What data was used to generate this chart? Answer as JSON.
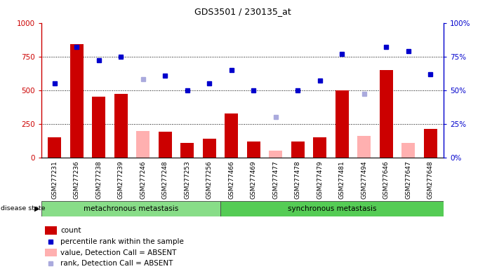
{
  "title": "GDS3501 / 230135_at",
  "samples": [
    "GSM277231",
    "GSM277236",
    "GSM277238",
    "GSM277239",
    "GSM277246",
    "GSM277248",
    "GSM277253",
    "GSM277256",
    "GSM277466",
    "GSM277469",
    "GSM277477",
    "GSM277478",
    "GSM277479",
    "GSM277481",
    "GSM277494",
    "GSM277646",
    "GSM277647",
    "GSM277648"
  ],
  "count_values": [
    150,
    840,
    450,
    470,
    null,
    190,
    110,
    140,
    325,
    120,
    null,
    120,
    150,
    500,
    null,
    650,
    null,
    210
  ],
  "count_absent": [
    null,
    null,
    null,
    null,
    195,
    null,
    null,
    null,
    null,
    null,
    50,
    null,
    null,
    null,
    160,
    null,
    110,
    null
  ],
  "percentile_values": [
    55,
    82,
    72,
    75,
    null,
    61,
    50,
    55,
    65,
    50,
    null,
    50,
    57,
    77,
    null,
    82,
    79,
    62
  ],
  "percentile_absent": [
    null,
    null,
    null,
    null,
    58,
    null,
    null,
    null,
    null,
    null,
    30,
    null,
    null,
    null,
    47,
    null,
    null,
    null
  ],
  "group1_label": "metachronous metastasis",
  "group1_count": 8,
  "group2_label": "synchronous metastasis",
  "group2_count": 10,
  "bar_color_red": "#cc0000",
  "bar_color_pink": "#ffb0b0",
  "dot_color_blue": "#0000cc",
  "dot_color_lightblue": "#aaaadd",
  "ylim_left": [
    0,
    1000
  ],
  "ylim_right": [
    0,
    100
  ],
  "yticks_left": [
    0,
    250,
    500,
    750,
    1000
  ],
  "yticks_right": [
    0,
    25,
    50,
    75,
    100
  ],
  "grid_lines": [
    250,
    500,
    750
  ],
  "background_color": "#ffffff",
  "legend_items": [
    {
      "label": "count",
      "color": "#cc0000",
      "type": "bar"
    },
    {
      "label": "percentile rank within the sample",
      "color": "#0000cc",
      "type": "dot"
    },
    {
      "label": "value, Detection Call = ABSENT",
      "color": "#ffb0b0",
      "type": "bar"
    },
    {
      "label": "rank, Detection Call = ABSENT",
      "color": "#aaaadd",
      "type": "dot"
    }
  ]
}
